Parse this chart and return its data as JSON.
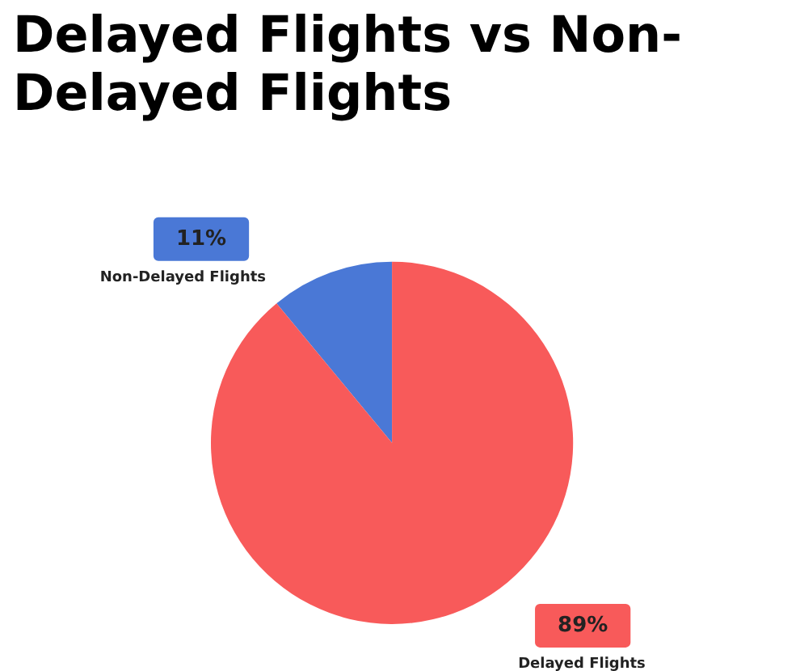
{
  "chart_data": {
    "type": "pie",
    "title": "Delayed Flights vs Non-Delayed Flights",
    "categories": [
      "Non-Delayed Flights",
      "Delayed Flights"
    ],
    "values": [
      11,
      89
    ],
    "colors": [
      "#4a78d6",
      "#f85a5a"
    ],
    "value_labels": [
      "11%",
      "89%"
    ],
    "legend": false
  }
}
